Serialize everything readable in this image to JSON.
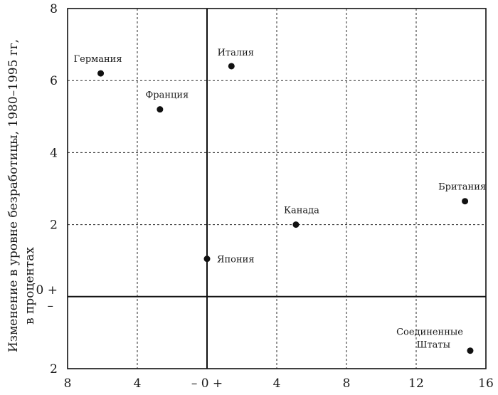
{
  "chart_data": {
    "type": "scatter",
    "ylabel_line1": "Изменение в уровне безработицы, 1980–1995 гг,",
    "ylabel_line2": "в процентах",
    "xlim": [
      -8,
      16
    ],
    "ylim": [
      -2,
      8
    ],
    "grid": true,
    "x_ticks": [
      {
        "v": -8,
        "label": "8"
      },
      {
        "v": -4,
        "label": "4"
      },
      {
        "v": 0,
        "label": "– 0 +"
      },
      {
        "v": 4,
        "label": "4"
      },
      {
        "v": 8,
        "label": "8"
      },
      {
        "v": 12,
        "label": "12"
      },
      {
        "v": 16,
        "label": "16"
      }
    ],
    "y_ticks": [
      {
        "v": 8,
        "label": "8"
      },
      {
        "v": 6,
        "label": "6"
      },
      {
        "v": 4,
        "label": "4"
      },
      {
        "v": 2,
        "label": "2"
      },
      {
        "v": -2,
        "label": "2"
      }
    ],
    "zero_label_plus": "0 +",
    "zero_label_minus": "–",
    "points": [
      {
        "label": "Германия",
        "x": -6.1,
        "y": 6.2
      },
      {
        "label": "Франция",
        "x": -2.7,
        "y": 5.2
      },
      {
        "label": "Италия",
        "x": 1.4,
        "y": 6.4
      },
      {
        "label": "Канада",
        "x": 5.1,
        "y": 2.0
      },
      {
        "label": "Япония",
        "x": 0.0,
        "y": 1.05
      },
      {
        "label": "Британия",
        "x": 14.8,
        "y": 2.65
      },
      {
        "label": "Соединенные Штаты",
        "x": 15.1,
        "y": -1.5
      }
    ]
  }
}
